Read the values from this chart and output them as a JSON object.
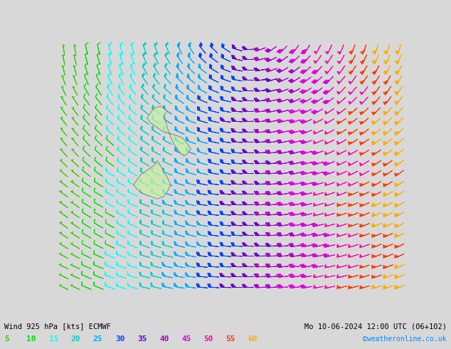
{
  "title_left": "Wind 925 hPa [kts] ECMWF",
  "title_right": "Mo 10-06-2024 12:00 UTC (06+102)",
  "copyright": "©weatheronline.co.uk",
  "legend_values": [
    5,
    10,
    15,
    20,
    25,
    30,
    35,
    40,
    45,
    50,
    55,
    60
  ],
  "legend_colors": [
    "#33cc00",
    "#00dd00",
    "#00ffff",
    "#00cccc",
    "#00aaff",
    "#0044ff",
    "#6600cc",
    "#aa00cc",
    "#dd00dd",
    "#ff00aa",
    "#ff3300",
    "#ffaa00"
  ],
  "background_color": "#d8d8d8",
  "fig_width": 6.34,
  "fig_height": 4.9,
  "dpi": 100,
  "nx": 30,
  "ny": 24
}
